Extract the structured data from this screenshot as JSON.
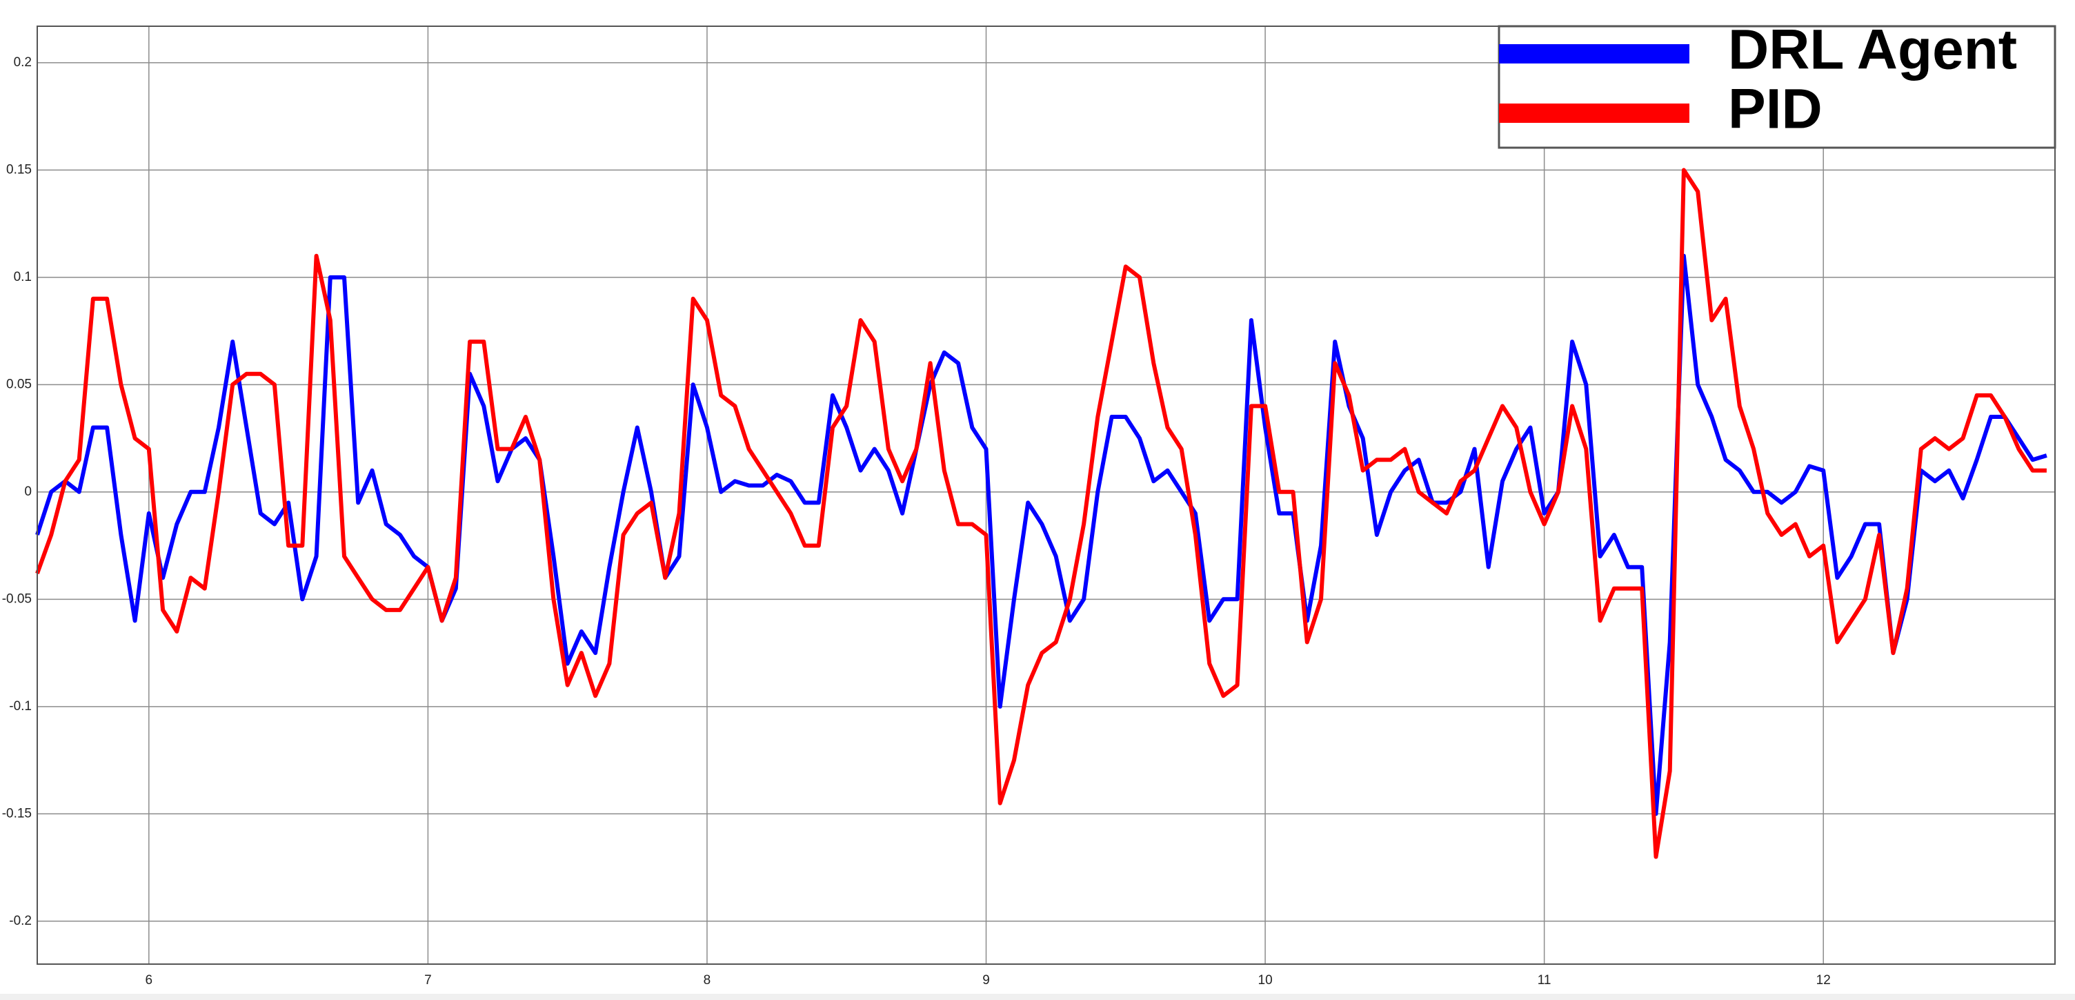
{
  "chart_data": {
    "type": "line",
    "x": [
      5.6,
      5.65,
      5.7,
      5.75,
      5.8,
      5.85,
      5.9,
      5.95,
      6.0,
      6.05,
      6.1,
      6.15,
      6.2,
      6.25,
      6.3,
      6.35,
      6.4,
      6.45,
      6.5,
      6.55,
      6.6,
      6.65,
      6.7,
      6.75,
      6.8,
      6.85,
      6.9,
      6.95,
      7.0,
      7.05,
      7.1,
      7.15,
      7.2,
      7.25,
      7.3,
      7.35,
      7.4,
      7.45,
      7.5,
      7.55,
      7.6,
      7.65,
      7.7,
      7.75,
      7.8,
      7.85,
      7.9,
      7.95,
      8.0,
      8.05,
      8.1,
      8.15,
      8.2,
      8.25,
      8.3,
      8.35,
      8.4,
      8.45,
      8.5,
      8.55,
      8.6,
      8.65,
      8.7,
      8.75,
      8.8,
      8.85,
      8.9,
      8.95,
      9.0,
      9.05,
      9.1,
      9.15,
      9.2,
      9.25,
      9.3,
      9.35,
      9.4,
      9.45,
      9.5,
      9.55,
      9.6,
      9.65,
      9.7,
      9.75,
      9.8,
      9.85,
      9.9,
      9.95,
      10.0,
      10.05,
      10.1,
      10.15,
      10.2,
      10.25,
      10.3,
      10.35,
      10.4,
      10.45,
      10.5,
      10.55,
      10.6,
      10.65,
      10.7,
      10.75,
      10.8,
      10.85,
      10.9,
      10.95,
      11.0,
      11.05,
      11.1,
      11.15,
      11.2,
      11.25,
      11.3,
      11.35,
      11.4,
      11.45,
      11.5,
      11.55,
      11.6,
      11.65,
      11.7,
      11.75,
      11.8,
      11.85,
      11.9,
      11.95,
      12.0,
      12.05,
      12.1,
      12.15,
      12.2,
      12.25,
      12.3,
      12.35,
      12.4,
      12.45,
      12.5,
      12.55,
      12.6,
      12.65,
      12.7,
      12.75,
      12.8
    ],
    "series": [
      {
        "name": "DRL Agent",
        "color": "#0000ff",
        "values": [
          -0.02,
          0.0,
          0.005,
          0.0,
          0.03,
          0.03,
          -0.02,
          -0.06,
          -0.01,
          -0.04,
          -0.015,
          0.0,
          0.0,
          0.03,
          0.07,
          0.03,
          -0.01,
          -0.015,
          -0.005,
          -0.05,
          -0.03,
          0.1,
          0.1,
          -0.005,
          0.01,
          -0.015,
          -0.02,
          -0.03,
          -0.035,
          -0.06,
          -0.045,
          0.055,
          0.04,
          0.005,
          0.02,
          0.025,
          0.015,
          -0.03,
          -0.08,
          -0.065,
          -0.075,
          -0.035,
          0.0,
          0.03,
          0.0,
          -0.04,
          -0.03,
          0.05,
          0.03,
          0.0,
          0.005,
          0.003,
          0.003,
          0.008,
          0.005,
          -0.005,
          -0.005,
          0.045,
          0.03,
          0.01,
          0.02,
          0.01,
          -0.01,
          0.02,
          0.05,
          0.065,
          0.06,
          0.03,
          0.02,
          -0.1,
          -0.05,
          -0.005,
          -0.015,
          -0.03,
          -0.06,
          -0.05,
          0.0,
          0.035,
          0.035,
          0.025,
          0.005,
          0.01,
          0.0,
          -0.01,
          -0.06,
          -0.05,
          -0.05,
          0.08,
          0.03,
          -0.01,
          -0.01,
          -0.06,
          -0.025,
          0.07,
          0.04,
          0.025,
          -0.02,
          0.0,
          0.01,
          0.015,
          -0.005,
          -0.005,
          0.0,
          0.02,
          -0.035,
          0.005,
          0.02,
          0.03,
          -0.01,
          0.0,
          0.07,
          0.05,
          -0.03,
          -0.02,
          -0.035,
          -0.035,
          -0.15,
          -0.07,
          0.11,
          0.05,
          0.035,
          0.015,
          0.01,
          0.0,
          0.0,
          -0.005,
          0.0,
          0.012,
          0.01,
          -0.04,
          -0.03,
          -0.015,
          -0.015,
          -0.075,
          -0.05,
          0.01,
          0.005,
          0.01,
          -0.003,
          0.015,
          0.035,
          0.035,
          0.025,
          0.015,
          0.017
        ]
      },
      {
        "name": "PID",
        "color": "#ff0000",
        "values": [
          -0.038,
          -0.02,
          0.005,
          0.015,
          0.09,
          0.09,
          0.05,
          0.025,
          0.02,
          -0.055,
          -0.065,
          -0.04,
          -0.045,
          0.0,
          0.05,
          0.055,
          0.055,
          0.05,
          -0.025,
          -0.025,
          0.11,
          0.08,
          -0.03,
          -0.04,
          -0.05,
          -0.055,
          -0.055,
          -0.045,
          -0.035,
          -0.06,
          -0.04,
          0.07,
          0.07,
          0.02,
          0.02,
          0.035,
          0.015,
          -0.05,
          -0.09,
          -0.075,
          -0.095,
          -0.08,
          -0.02,
          -0.01,
          -0.005,
          -0.04,
          -0.01,
          0.09,
          0.08,
          0.045,
          0.04,
          0.02,
          0.01,
          0.0,
          -0.01,
          -0.025,
          -0.025,
          0.03,
          0.04,
          0.08,
          0.07,
          0.02,
          0.005,
          0.02,
          0.06,
          0.01,
          -0.015,
          -0.015,
          -0.02,
          -0.145,
          -0.125,
          -0.09,
          -0.075,
          -0.07,
          -0.05,
          -0.015,
          0.035,
          0.07,
          0.105,
          0.1,
          0.06,
          0.03,
          0.02,
          -0.02,
          -0.08,
          -0.095,
          -0.09,
          0.04,
          0.04,
          0.0,
          0.0,
          -0.07,
          -0.05,
          0.06,
          0.045,
          0.01,
          0.015,
          0.015,
          0.02,
          0.0,
          -0.005,
          -0.01,
          0.005,
          0.01,
          0.025,
          0.04,
          0.03,
          0.0,
          -0.015,
          0.0,
          0.04,
          0.02,
          -0.06,
          -0.045,
          -0.045,
          -0.045,
          -0.17,
          -0.13,
          0.15,
          0.14,
          0.08,
          0.09,
          0.04,
          0.02,
          -0.01,
          -0.02,
          -0.015,
          -0.03,
          -0.025,
          -0.07,
          -0.06,
          -0.05,
          -0.02,
          -0.075,
          -0.045,
          0.02,
          0.025,
          0.02,
          0.025,
          0.045,
          0.045,
          0.035,
          0.02,
          0.01,
          0.01
        ]
      }
    ],
    "xlim": [
      5.6,
      12.83
    ],
    "xticks": [
      6,
      7,
      8,
      9,
      10,
      11,
      12
    ],
    "ylim": [
      -0.22,
      0.217
    ],
    "yticks": [
      0.2,
      0.15,
      0.1,
      0.05,
      0,
      -0.05,
      -0.1,
      -0.15,
      -0.2
    ],
    "grid": true,
    "legend": "top-right"
  }
}
